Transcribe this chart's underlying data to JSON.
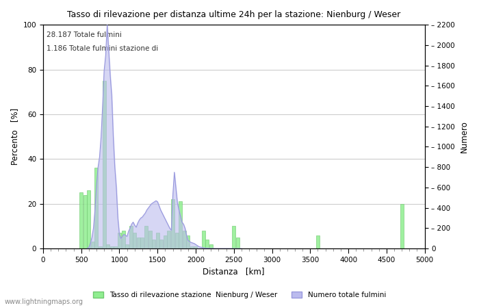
{
  "title": "Tasso di rilevazione per distanza ultime 24h per la stazione: Nienburg / Weser",
  "xlabel": "Distanza   [km]",
  "ylabel_left": "Percento   [%]",
  "ylabel_right": "Numero",
  "annotation_line1": "28.187 Totale fulmini",
  "annotation_line2": "1.186 Totale fulmini stazione di",
  "xlim": [
    0,
    5000
  ],
  "ylim_left": [
    0,
    100
  ],
  "ylim_right": [
    0,
    2200
  ],
  "xticks": [
    0,
    500,
    1000,
    1500,
    2000,
    2500,
    3000,
    3500,
    4000,
    4500,
    5000
  ],
  "yticks_left": [
    0,
    20,
    40,
    60,
    80,
    100
  ],
  "yticks_right": [
    0,
    200,
    400,
    600,
    800,
    1000,
    1200,
    1400,
    1600,
    1800,
    2000,
    2200
  ],
  "legend_label_green": "Tasso di rilevazione stazione  Nienburg / Weser",
  "legend_label_blue": "Numero totale fulmini",
  "watermark": "www.lightningmaps.org",
  "bar_color": "#90EE90",
  "bar_edgecolor": "#70C870",
  "line_color": "#9999DD",
  "line_fill_color": "#BBBBEE",
  "background_color": "#FFFFFF",
  "grid_color": "#CCCCCC",
  "bar_distances": [
    500,
    550,
    600,
    650,
    700,
    750,
    800,
    850,
    900,
    950,
    1000,
    1050,
    1100,
    1150,
    1200,
    1250,
    1300,
    1350,
    1400,
    1450,
    1500,
    1550,
    1600,
    1650,
    1700,
    1750,
    1800,
    1850,
    1900,
    1950,
    2000,
    2050,
    2100,
    2150,
    2200,
    2250,
    2300,
    2350,
    2400,
    2450,
    2500,
    2550,
    3600,
    3650,
    4700,
    4750
  ],
  "bar_heights": [
    25,
    24,
    26,
    3,
    36,
    1,
    75,
    2,
    1,
    1,
    7,
    8,
    2,
    10,
    7,
    5,
    5,
    10,
    8,
    4,
    7,
    4,
    6,
    8,
    22,
    7,
    21,
    8,
    6,
    1,
    1,
    0,
    8,
    4,
    2,
    0,
    0,
    0,
    0,
    0,
    10,
    5,
    6,
    0,
    20,
    0
  ],
  "line_distances": [
    580,
    600,
    620,
    640,
    660,
    680,
    700,
    720,
    740,
    760,
    780,
    800,
    820,
    840,
    860,
    880,
    900,
    920,
    940,
    960,
    980,
    1000,
    1020,
    1040,
    1060,
    1080,
    1100,
    1120,
    1140,
    1160,
    1180,
    1200,
    1220,
    1240,
    1260,
    1280,
    1300,
    1320,
    1340,
    1360,
    1380,
    1400,
    1420,
    1440,
    1460,
    1480,
    1500,
    1520,
    1540,
    1560,
    1580,
    1600,
    1620,
    1640,
    1660,
    1680,
    1700,
    1720,
    1740,
    1760,
    1780,
    1800,
    1820,
    1840,
    1860,
    1880,
    1900,
    1920,
    1940,
    1960,
    1980,
    2000,
    2020,
    2040,
    2060,
    2080,
    2100,
    2120,
    2140,
    2160,
    2180,
    2200,
    2220,
    2240,
    2260,
    2280,
    2300,
    2320,
    2340,
    2360,
    2380,
    2400,
    2420,
    2440,
    2460,
    2480,
    2500,
    2520,
    2540,
    2560,
    2580,
    2600
  ],
  "line_values": [
    4,
    11,
    50,
    110,
    200,
    380,
    620,
    800,
    900,
    1100,
    1400,
    1750,
    1900,
    2200,
    1950,
    1700,
    1500,
    1100,
    800,
    600,
    300,
    140,
    100,
    120,
    140,
    130,
    120,
    170,
    200,
    240,
    260,
    230,
    210,
    250,
    280,
    300,
    310,
    330,
    350,
    380,
    400,
    420,
    440,
    450,
    460,
    470,
    460,
    420,
    380,
    350,
    320,
    290,
    260,
    230,
    200,
    180,
    520,
    750,
    600,
    450,
    380,
    320,
    260,
    240,
    200,
    130,
    80,
    70,
    60,
    55,
    50,
    40,
    30,
    20,
    15,
    12,
    8,
    5,
    4,
    3,
    2,
    1,
    1,
    1,
    0,
    0,
    0,
    0,
    0,
    0,
    0,
    0,
    0,
    0,
    0,
    0,
    0,
    0,
    0,
    0,
    0,
    0
  ]
}
